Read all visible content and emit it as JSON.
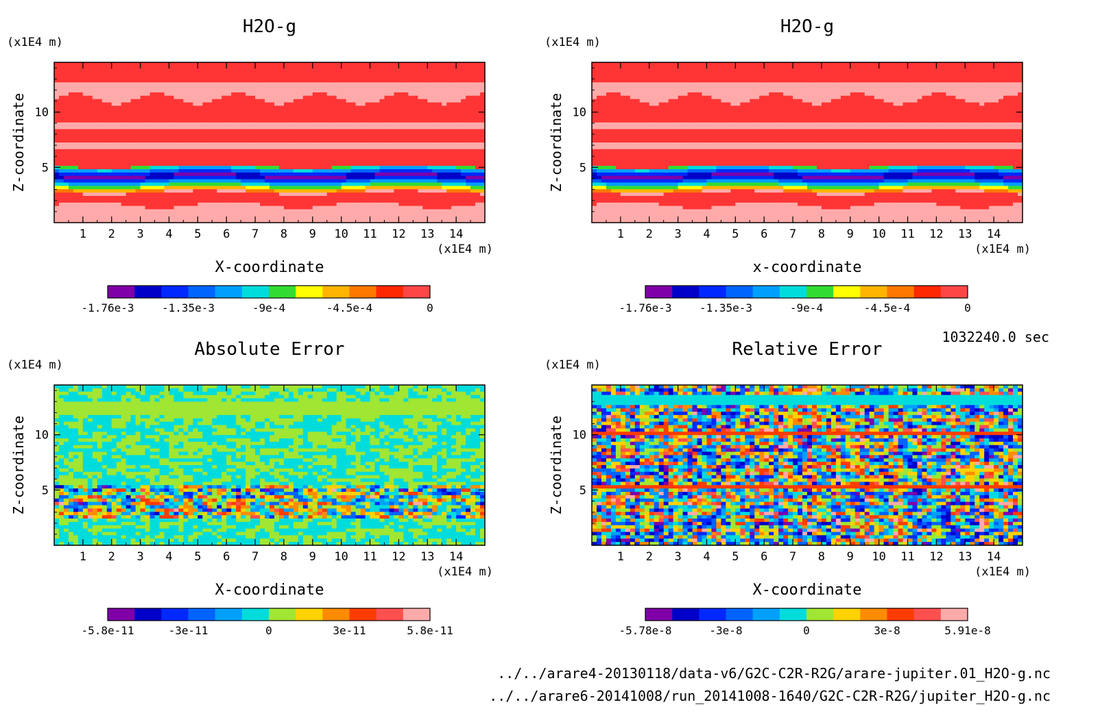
{
  "timestamp": "1032240.0 sec",
  "files": [
    "../../arare4-20130118/data-v6/G2C-C2R-R2G/arare-jupiter.01_H2O-g.nc",
    "../../arare6-20141008/run_20141008-1640/G2C-C2R-R2G/jupiter_H2O-g.nc"
  ],
  "chart_data": [
    {
      "type": "heatmap",
      "field": "mixing",
      "title": "H2O-g",
      "xlabel": "X-coordinate",
      "ylabel": "Z-coordinate",
      "x_unit": "(x1E4 m)",
      "z_unit": "(x1E4 m)",
      "xlim": [
        0,
        15
      ],
      "ylim": [
        0,
        14.5
      ],
      "xticks": [
        "1",
        "2",
        "3",
        "4",
        "5",
        "6",
        "7",
        "8",
        "9",
        "10",
        "11",
        "12",
        "13",
        "14"
      ],
      "yticks": [
        "5",
        "10"
      ],
      "colorbar": {
        "colors": [
          "#7f00a8",
          "#0000c8",
          "#0028ff",
          "#0064ff",
          "#00a0ff",
          "#00dcdc",
          "#32dc32",
          "#ffff00",
          "#ffb400",
          "#ff7800",
          "#ff2800",
          "#ff4646"
        ],
        "ticks": [
          "-1.76e-3",
          "-1.35e-3",
          "-9e-4",
          "-4.5e-4",
          "0"
        ]
      }
    },
    {
      "type": "heatmap",
      "field": "mixing",
      "title": "H2O-g",
      "xlabel": "x-coordinate",
      "ylabel": "Z-coordinate",
      "x_unit": "(x1E4 m)",
      "z_unit": "(x1E4 m)",
      "xlim": [
        0,
        15
      ],
      "ylim": [
        0,
        14.5
      ],
      "xticks": [
        "1",
        "2",
        "3",
        "4",
        "5",
        "6",
        "7",
        "8",
        "9",
        "10",
        "11",
        "12",
        "13",
        "14"
      ],
      "yticks": [
        "5",
        "10"
      ],
      "colorbar": {
        "colors": [
          "#7f00a8",
          "#0000c8",
          "#0028ff",
          "#0064ff",
          "#00a0ff",
          "#00dcdc",
          "#32dc32",
          "#ffff00",
          "#ffb400",
          "#ff7800",
          "#ff2800",
          "#ff4646"
        ],
        "ticks": [
          "-1.76e-3",
          "-1.35e-3",
          "-9e-4",
          "-4.5e-4",
          "0"
        ]
      }
    },
    {
      "type": "heatmap",
      "field": "abserr",
      "title": "Absolute Error",
      "xlabel": "X-coordinate",
      "ylabel": "Z-coordinate",
      "x_unit": "(x1E4 m)",
      "z_unit": "(x1E4 m)",
      "xlim": [
        0,
        15
      ],
      "ylim": [
        0,
        14.5
      ],
      "xticks": [
        "1",
        "2",
        "3",
        "4",
        "5",
        "6",
        "7",
        "8",
        "9",
        "10",
        "11",
        "12",
        "13",
        "14"
      ],
      "yticks": [
        "5",
        "10"
      ],
      "colorbar": {
        "colors": [
          "#7f00a8",
          "#0000c8",
          "#0028ff",
          "#0064ff",
          "#00a0ff",
          "#00dcdc",
          "#a0e632",
          "#ffd200",
          "#ff8c00",
          "#ff3c00",
          "#ff5050",
          "#ffaaaa"
        ],
        "ticks": [
          "-5.8e-11",
          "-3e-11",
          "0",
          "3e-11",
          "5.8e-11"
        ]
      }
    },
    {
      "type": "heatmap",
      "field": "relerr",
      "title": "Relative Error",
      "xlabel": "X-coordinate",
      "ylabel": "Z-coordinate",
      "x_unit": "(x1E4 m)",
      "z_unit": "(x1E4 m)",
      "xlim": [
        0,
        15
      ],
      "ylim": [
        0,
        14.5
      ],
      "xticks": [
        "1",
        "2",
        "3",
        "4",
        "5",
        "6",
        "7",
        "8",
        "9",
        "10",
        "11",
        "12",
        "13",
        "14"
      ],
      "yticks": [
        "5",
        "10"
      ],
      "colorbar": {
        "colors": [
          "#7f00a8",
          "#0000c8",
          "#0028ff",
          "#0064ff",
          "#00a0ff",
          "#00dcdc",
          "#a0e632",
          "#ffd200",
          "#ff8c00",
          "#ff3c00",
          "#ff5050",
          "#ffaaaa"
        ],
        "ticks": [
          "-5.78e-8",
          "-3e-8",
          "0",
          "3e-8",
          "5.91e-8"
        ]
      }
    }
  ]
}
